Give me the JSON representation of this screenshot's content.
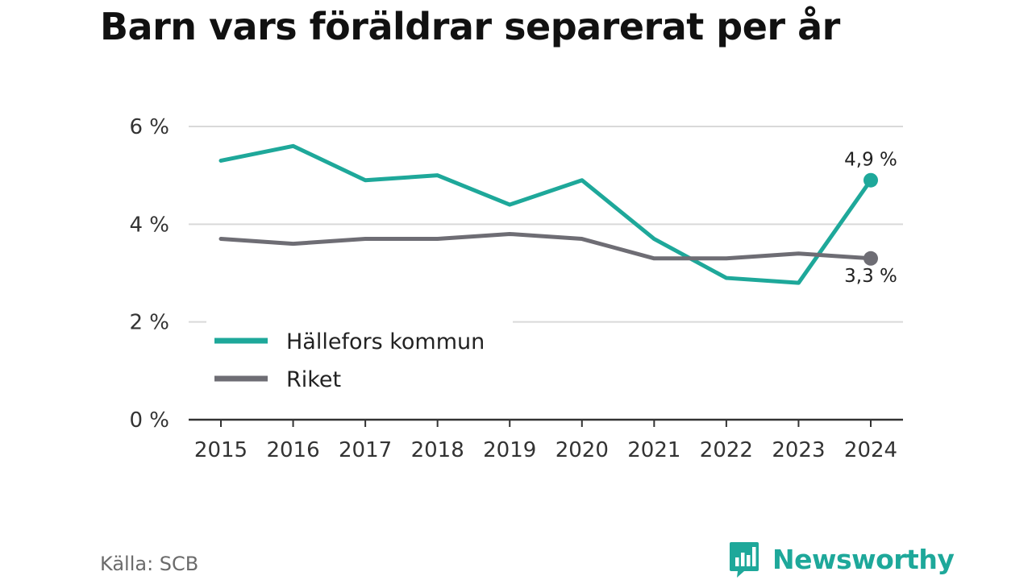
{
  "chart_data": {
    "type": "line",
    "title": "Barn vars föräldrar separerat per år",
    "x": [
      "2015",
      "2016",
      "2017",
      "2018",
      "2019",
      "2020",
      "2021",
      "2022",
      "2023",
      "2024"
    ],
    "series": [
      {
        "name": "Hällefors kommun",
        "color": "#1ea89a",
        "values": [
          5.3,
          5.6,
          4.9,
          5.0,
          4.4,
          4.9,
          3.7,
          2.9,
          2.8,
          4.9
        ],
        "end_label": "4,9 %"
      },
      {
        "name": "Riket",
        "color": "#6e6d74",
        "values": [
          3.7,
          3.6,
          3.7,
          3.7,
          3.8,
          3.7,
          3.3,
          3.3,
          3.4,
          3.3
        ],
        "end_label": "3,3 %"
      }
    ],
    "ylim": [
      0,
      6
    ],
    "yticks": [
      0,
      2,
      4,
      6
    ],
    "ytick_labels": [
      "0 %",
      "2 %",
      "4 %",
      "6 %"
    ],
    "grid": true,
    "legend_position": "bottom-left",
    "source": "Källa: SCB"
  },
  "branding": {
    "name": "Newsworthy",
    "icon": "newsworthy-logo-icon",
    "color": "#1ea89a"
  }
}
